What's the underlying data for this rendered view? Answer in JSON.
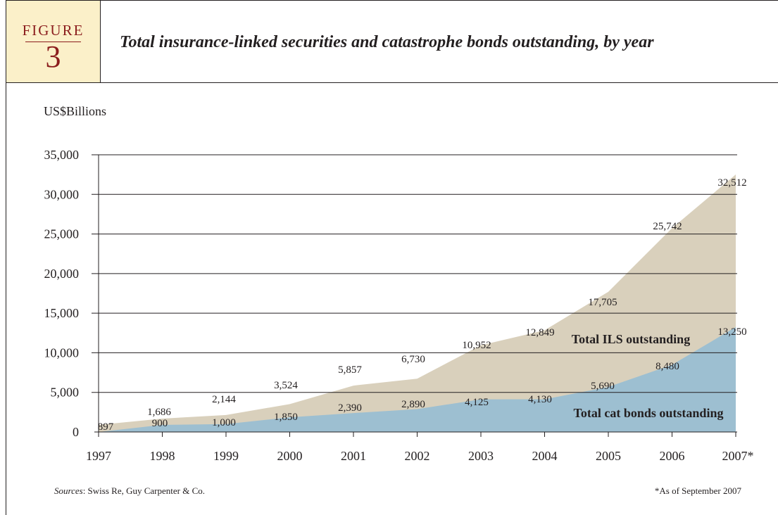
{
  "figure": {
    "word": "FIGURE",
    "number": "3"
  },
  "title": "Total insurance-linked securities and catastrophe bonds outstanding, by year",
  "unit_label": "US$Billions",
  "sources": {
    "label": "Sources",
    "text": ": Swiss Re, Guy Carpenter & Co."
  },
  "footnote": "*As of September 2007",
  "chart_data": {
    "type": "area",
    "title": "Total insurance-linked securities and catastrophe bonds outstanding, by year",
    "xlabel": "",
    "ylabel": "US$Billions",
    "ylim": [
      0,
      35000
    ],
    "y_ticks": [
      "0",
      "5,000",
      "10,000",
      "15,000",
      "20,000",
      "25,000",
      "30,000",
      "35,000"
    ],
    "grid": true,
    "categories": [
      "1997",
      "1998",
      "1999",
      "2000",
      "2001",
      "2002",
      "2003",
      "2004",
      "2005",
      "2006",
      "2007*"
    ],
    "series": [
      {
        "name": "Total ILS outstanding",
        "color": "#d9d0bc",
        "values": [
          897,
          1686,
          2144,
          3524,
          5857,
          6730,
          10952,
          12849,
          17705,
          25742,
          32512
        ],
        "labels": [
          "897",
          "1,686",
          "2,144",
          "3,524",
          "5,857",
          "6,730",
          "10,952",
          "12,849",
          "17,705",
          "25,742",
          "32,512"
        ]
      },
      {
        "name": "Total cat bonds outstanding",
        "color": "#9dbfd1",
        "values": [
          null,
          900,
          1000,
          1850,
          2390,
          2890,
          4125,
          4130,
          5690,
          8480,
          13250
        ],
        "labels": [
          "",
          "900",
          "1,000",
          "1,850",
          "2,390",
          "2,890",
          "4,125",
          "4,130",
          "5,690",
          "8,480",
          "13,250"
        ]
      }
    ]
  }
}
